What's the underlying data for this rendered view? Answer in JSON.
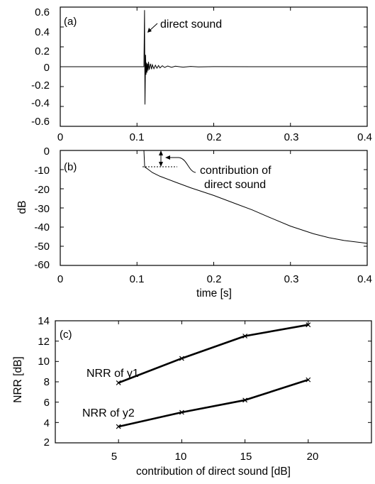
{
  "chart_data": [
    {
      "panel": "(a)",
      "type": "line",
      "xlim": [
        0,
        0.4
      ],
      "ylim": [
        -0.6,
        0.6
      ],
      "xticks": [
        "0",
        "0.1",
        "0.2",
        "0.3",
        "0.4"
      ],
      "yticks": [
        "0.6",
        "0.4",
        "0.2",
        "0",
        "-0.2",
        "-0.4",
        "-0.6"
      ],
      "xlabel": "",
      "ylabel": "",
      "annotations": [
        {
          "text": "direct sound",
          "x": 0.11,
          "y": 0.56
        }
      ],
      "series": [
        {
          "x": [
            0,
            0.109,
            0.1098,
            0.1104,
            0.1112,
            0.1118,
            0.1125,
            0.113,
            0.1138,
            0.1145,
            0.115,
            0.116,
            0.1175,
            0.119,
            0.12,
            0.122,
            0.124,
            0.126,
            0.128,
            0.13,
            0.133,
            0.136,
            0.14,
            0.145,
            0.15,
            0.16,
            0.17,
            0.18,
            0.2,
            0.25,
            0.4
          ],
          "y": [
            0,
            0,
            0.57,
            -0.38,
            0.12,
            -0.08,
            0.04,
            -0.06,
            0.03,
            -0.04,
            0.05,
            -0.03,
            0.03,
            -0.025,
            0.02,
            -0.02,
            0.015,
            -0.015,
            0.012,
            -0.012,
            0.01,
            -0.008,
            0.007,
            -0.006,
            0.005,
            -0.004,
            0.003,
            -0.002,
            0.001,
            0,
            0
          ]
        }
      ],
      "grid": false
    },
    {
      "panel": "(b)",
      "type": "line",
      "xlim": [
        0,
        0.4
      ],
      "ylim": [
        -60,
        0
      ],
      "xticks": [
        "0",
        "0.1",
        "0.2",
        "0.3",
        "0.4"
      ],
      "yticks": [
        "0",
        "-10",
        "-20",
        "-30",
        "-40",
        "-50",
        "-60"
      ],
      "xlabel": "time [s]",
      "ylabel": "dB",
      "annotations": [
        {
          "text": "contribution of\ndirect sound"
        }
      ],
      "series": [
        {
          "x": [
            0.109,
            0.11,
            0.115,
            0.12,
            0.13,
            0.15,
            0.17,
            0.2,
            0.23,
            0.25,
            0.27,
            0.3,
            0.33,
            0.35,
            0.37,
            0.4
          ],
          "y": [
            0,
            -8.6,
            -10,
            -11.5,
            -13.5,
            -16.5,
            -19.5,
            -23.5,
            -28,
            -31,
            -34.5,
            -39.5,
            -43.5,
            -45.5,
            -47,
            -48.5
          ]
        }
      ],
      "grid": false
    },
    {
      "panel": "(c)",
      "type": "line",
      "xlim": [
        0,
        25
      ],
      "ylim": [
        2,
        14
      ],
      "xticks": [
        "5",
        "10",
        "15",
        "20"
      ],
      "yticks": [
        "14",
        "12",
        "10",
        "8",
        "6",
        "4",
        "2"
      ],
      "xlabel": "contribution of direct sound [dB]",
      "ylabel": "NRR [dB]",
      "x": [
        5,
        10,
        15,
        20
      ],
      "series": [
        {
          "name": "NRR of y1",
          "values": [
            7.9,
            10.3,
            12.5,
            13.6
          ]
        },
        {
          "name": "NRR of y2",
          "values": [
            3.6,
            5.0,
            6.2,
            8.2
          ]
        }
      ],
      "grid": false
    }
  ]
}
